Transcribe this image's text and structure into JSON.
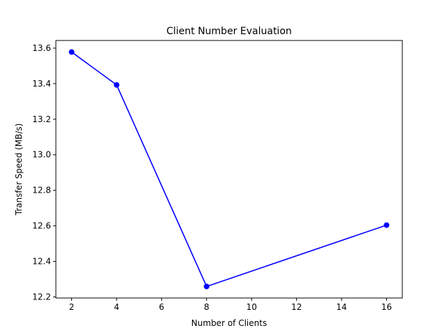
{
  "chart_data": {
    "type": "line",
    "title": "Client Number Evaluation",
    "xlabel": "Number of Clients",
    "ylabel": "Transfer Speed (MB/s)",
    "xlim": [
      1.3,
      16.7
    ],
    "ylim": [
      12.194,
      13.643
    ],
    "xticks": [
      2,
      4,
      6,
      8,
      10,
      12,
      14,
      16
    ],
    "yticks": [
      12.2,
      12.4,
      12.6,
      12.8,
      13.0,
      13.2,
      13.4,
      13.6
    ],
    "grid": false,
    "legend": "none",
    "series": [
      {
        "x": [
          2,
          4,
          8,
          16
        ],
        "y": [
          13.578,
          13.393,
          12.259,
          12.604
        ],
        "color": "#0000ff",
        "marker": "circle"
      }
    ]
  }
}
